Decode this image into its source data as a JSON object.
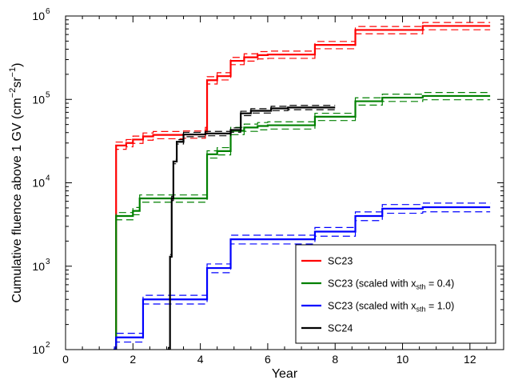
{
  "chart_data": {
    "type": "line",
    "title": "",
    "xlabel": "Year",
    "ylabel": "Cumulative fluence above 1 GV (cm⁻²sr⁻¹)",
    "xlim": [
      0,
      13
    ],
    "ylim": [
      100,
      1000000
    ],
    "yscale": "log",
    "x_ticks": [
      0,
      2,
      4,
      6,
      8,
      10,
      12
    ],
    "x_tick_labels": [
      "0",
      "2",
      "4",
      "6",
      "8",
      "10",
      "12"
    ],
    "y_ticks": [
      100,
      1000,
      10000,
      100000,
      1000000
    ],
    "y_tick_base": "10",
    "y_tick_exponents": [
      "2",
      "3",
      "4",
      "5",
      "6"
    ],
    "grid": false,
    "legend_position": "bottom-right",
    "series": [
      {
        "name": "SC23",
        "color": "#ff0000",
        "steps": [
          [
            1.45,
            100
          ],
          [
            1.5,
            28000
          ],
          [
            1.8,
            30000
          ],
          [
            2.0,
            33000
          ],
          [
            2.3,
            36000
          ],
          [
            2.6,
            37500
          ],
          [
            3.5,
            38000
          ],
          [
            4.15,
            42000
          ],
          [
            4.2,
            170000
          ],
          [
            4.5,
            190000
          ],
          [
            4.9,
            290000
          ],
          [
            5.3,
            320000
          ],
          [
            5.7,
            340000
          ],
          [
            6.0,
            345000
          ],
          [
            7.4,
            450000
          ],
          [
            8.6,
            680000
          ],
          [
            10.6,
            760000
          ],
          [
            12.6,
            760000
          ]
        ],
        "upper_factor": 1.1,
        "lower_factor": 0.9
      },
      {
        "name": "SC23 (scaled with x",
        "name_subscript": "sth",
        "name_suffix": " = 0.4)",
        "color": "#008000",
        "steps": [
          [
            1.45,
            100
          ],
          [
            1.5,
            4000
          ],
          [
            2.0,
            4600
          ],
          [
            2.2,
            6500
          ],
          [
            3.5,
            6500
          ],
          [
            4.15,
            6500
          ],
          [
            4.2,
            22000
          ],
          [
            4.5,
            24000
          ],
          [
            4.9,
            42000
          ],
          [
            5.3,
            46000
          ],
          [
            5.7,
            48000
          ],
          [
            6.0,
            49000
          ],
          [
            7.4,
            62000
          ],
          [
            8.6,
            95000
          ],
          [
            9.4,
            105000
          ],
          [
            10.6,
            110000
          ],
          [
            12.6,
            110000
          ]
        ],
        "upper_factor": 1.1,
        "lower_factor": 0.9
      },
      {
        "name": "SC23 (scaled with x",
        "name_subscript": "sth",
        "name_suffix": " = 1.0)",
        "color": "#0000ff",
        "steps": [
          [
            1.45,
            100
          ],
          [
            1.5,
            140
          ],
          [
            2.3,
            400
          ],
          [
            4.15,
            400
          ],
          [
            4.2,
            950
          ],
          [
            4.9,
            2100
          ],
          [
            7.4,
            2600
          ],
          [
            8.6,
            4000
          ],
          [
            9.4,
            4900
          ],
          [
            10.6,
            5100
          ],
          [
            12.6,
            5100
          ]
        ],
        "upper_factor": 1.12,
        "lower_factor": 0.88
      },
      {
        "name": "SC24",
        "color": "#000000",
        "steps": [
          [
            3.05,
            100
          ],
          [
            3.1,
            1300
          ],
          [
            3.15,
            6500
          ],
          [
            3.2,
            18000
          ],
          [
            3.3,
            31000
          ],
          [
            3.5,
            38000
          ],
          [
            4.15,
            39000
          ],
          [
            4.9,
            43000
          ],
          [
            5.2,
            68000
          ],
          [
            5.5,
            73000
          ],
          [
            6.1,
            78000
          ],
          [
            6.6,
            80000
          ],
          [
            8.0,
            80000
          ]
        ],
        "upper_factor": 1.06,
        "lower_factor": 0.94
      }
    ]
  }
}
